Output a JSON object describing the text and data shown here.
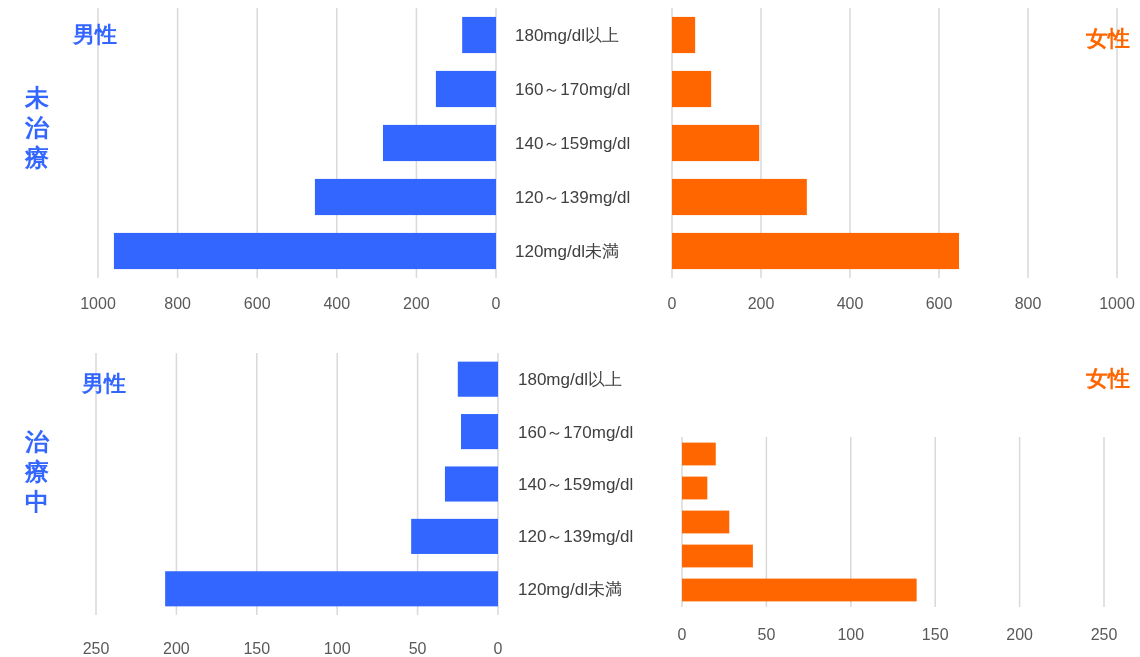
{
  "chart_data": [
    {
      "type": "bar",
      "orientation": "horizontal",
      "title": "男性",
      "ylabel": "未治療",
      "categories": [
        "180mg/dl以上",
        "160～170mg/dl",
        "140～159mg/dl",
        "120～139mg/dl",
        "120mg/dl未満"
      ],
      "values": [
        85,
        151,
        284,
        455,
        960
      ],
      "color": "#3366ff",
      "xlim": [
        1000,
        0
      ],
      "xticks": [
        1000,
        800,
        600,
        400,
        200,
        0
      ],
      "grid": "x"
    },
    {
      "type": "bar",
      "orientation": "horizontal",
      "title": "女性",
      "categories": [
        null,
        null,
        null,
        null,
        null
      ],
      "values": [
        52,
        88,
        196,
        303,
        645
      ],
      "color": "#ff6600",
      "xlim": [
        0,
        1000
      ],
      "xticks": [
        0,
        200,
        400,
        600,
        800,
        1000
      ],
      "grid": "x",
      "tick_labels": "x"
    },
    {
      "type": "bar",
      "orientation": "horizontal",
      "title": "男性",
      "ylabel": "治療中",
      "categories": [
        "180mg/dl以上",
        "160～170mg/dl",
        "140～159mg/dl",
        "120～139mg/dl",
        "120mg/dl未満"
      ],
      "values": [
        25,
        23,
        33,
        54,
        207
      ],
      "color": "#3366ff",
      "xlim": [
        250,
        0
      ],
      "xticks": [
        250,
        200,
        150,
        100,
        50,
        0
      ],
      "grid": "x"
    },
    {
      "type": "bar",
      "orientation": "horizontal",
      "title": "女性",
      "categories": [
        null,
        null,
        null,
        null,
        null
      ],
      "values": [
        20,
        15,
        28,
        42,
        139
      ],
      "color": "#ff6600",
      "xlim": [
        0,
        250
      ],
      "xticks": [
        0,
        50,
        100,
        150,
        200,
        250
      ],
      "grid": "x",
      "tick_labels": "x"
    }
  ]
}
